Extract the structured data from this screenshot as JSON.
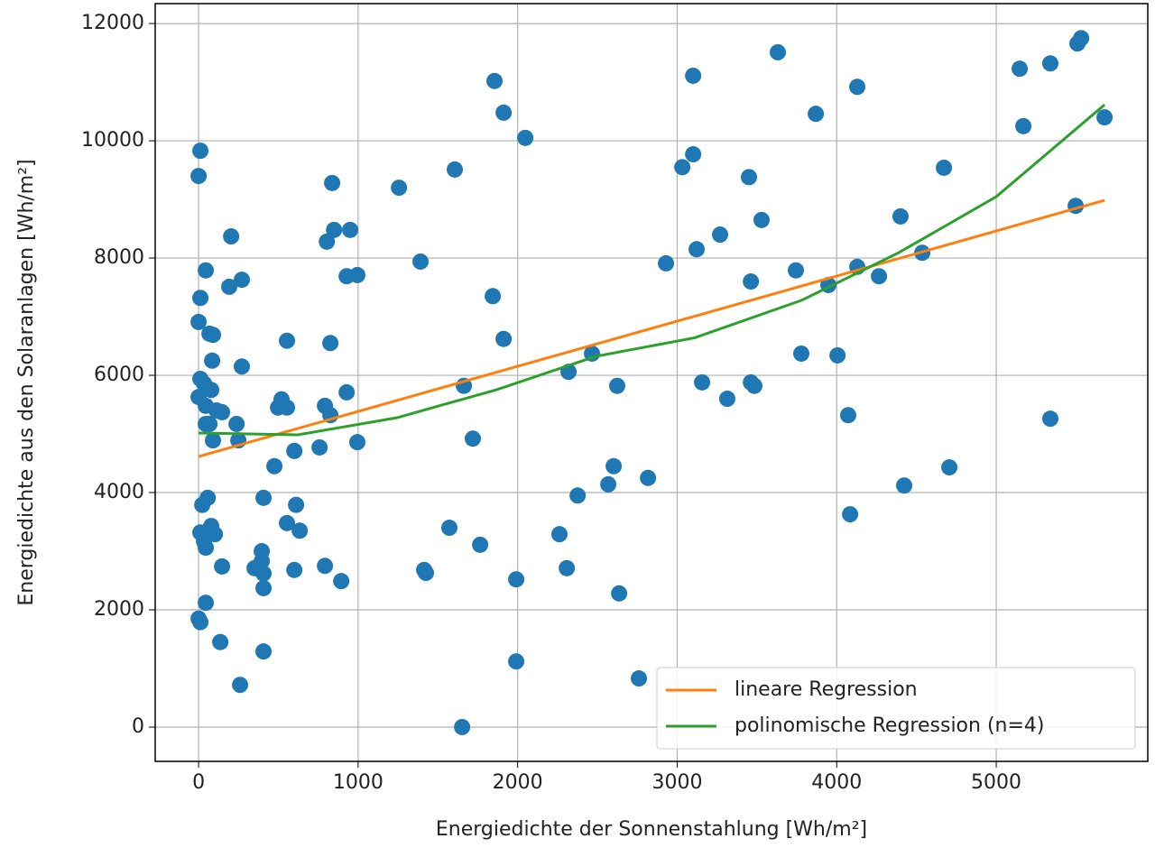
{
  "chart_data": {
    "type": "scatter",
    "x_label": "Energiedichte der Sonnenstahlung [Wh/m²]",
    "y_label": "Energiedichte aus den Solaranlagen [Wh/m²]",
    "xlim": [
      -272,
      5950
    ],
    "ylim": [
      -585,
      12340
    ],
    "xticks": [
      0,
      1000,
      2000,
      3000,
      4000,
      5000
    ],
    "yticks": [
      0,
      2000,
      4000,
      6000,
      8000,
      10000,
      12000
    ],
    "grid": true,
    "legend": "lower right",
    "points": {
      "color": "#1f77b4",
      "x": [
        11,
        0,
        11,
        45,
        0,
        68,
        90,
        85,
        11,
        34,
        0,
        79,
        45,
        113,
        45,
        147,
        238,
        249,
        90,
        68,
        57,
        23,
        11,
        34,
        45,
        79,
        102,
        45,
        0,
        11,
        136,
        147,
        260,
        204,
        192,
        271,
        271,
        351,
        396,
        396,
        407,
        407,
        407,
        407,
        475,
        520,
        498,
        554,
        554,
        554,
        600,
        611,
        634,
        600,
        758,
        792,
        826,
        804,
        849,
        837,
        950,
        928,
        995,
        826,
        928,
        995,
        792,
        894,
        1256,
        1391,
        1414,
        1425,
        1606,
        1572,
        1663,
        1652,
        1719,
        1765,
        1855,
        1912,
        1844,
        1912,
        1991,
        1991,
        2048,
        2262,
        2308,
        2319,
        2376,
        2466,
        2568,
        2602,
        2624,
        2636,
        2760,
        2817,
        2930,
        3032,
        3100,
        3100,
        3122,
        3156,
        3269,
        3314,
        3450,
        3462,
        3462,
        3484,
        3529,
        3631,
        3744,
        3778,
        3869,
        3948,
        4005,
        4072,
        4084,
        4129,
        4129,
        4265,
        4400,
        4423,
        4536,
        4672,
        4706,
        5147,
        5170,
        5339,
        5339,
        5498,
        5509,
        5532,
        5679
      ],
      "values": [
        9830,
        9400,
        7320,
        7790,
        6910,
        6710,
        6690,
        6250,
        5940,
        5860,
        5630,
        5750,
        5480,
        5400,
        5170,
        5370,
        5170,
        4890,
        4890,
        5170,
        3910,
        3790,
        3320,
        3170,
        3060,
        3430,
        3290,
        2120,
        1850,
        1790,
        1450,
        2740,
        720,
        8370,
        7510,
        7630,
        6150,
        2710,
        3000,
        2830,
        2620,
        2370,
        1290,
        3910,
        4450,
        5590,
        5450,
        5450,
        6590,
        3480,
        4710,
        3790,
        3350,
        2680,
        4770,
        5480,
        5320,
        8280,
        8480,
        9280,
        8480,
        7690,
        7710,
        6550,
        5710,
        4860,
        2750,
        2490,
        9200,
        7940,
        2680,
        2630,
        9510,
        3400,
        5820,
        0,
        4920,
        3110,
        11020,
        10480,
        7350,
        6620,
        2520,
        1120,
        10050,
        3290,
        2710,
        6060,
        3950,
        6370,
        4140,
        4450,
        5820,
        2280,
        830,
        4250,
        7910,
        9550,
        9770,
        11110,
        8150,
        5880,
        8400,
        5600,
        9380,
        7600,
        5880,
        5820,
        8650,
        11510,
        7790,
        6370,
        10460,
        7540,
        6340,
        5320,
        3630,
        10920,
        7850,
        7690,
        8710,
        4120,
        8090,
        9540,
        4430,
        11230,
        10250,
        11320,
        5260,
        8890,
        11660,
        11750,
        10400
      ]
    },
    "series": [
      {
        "name": "lineare Regression",
        "color": "#ff7f0e",
        "x": [
          0,
          5679
        ],
        "values": [
          4615,
          8985
        ]
      },
      {
        "name": "polinomische Regression (n=4)",
        "color": "#2ca02c",
        "x": [
          0,
          622,
          1244,
          1867,
          2489,
          3110,
          3778,
          4389,
          5000,
          5679
        ],
        "values": [
          5015,
          4985,
          5277,
          5754,
          6323,
          6640,
          7277,
          8092,
          9046,
          10615
        ]
      }
    ]
  }
}
